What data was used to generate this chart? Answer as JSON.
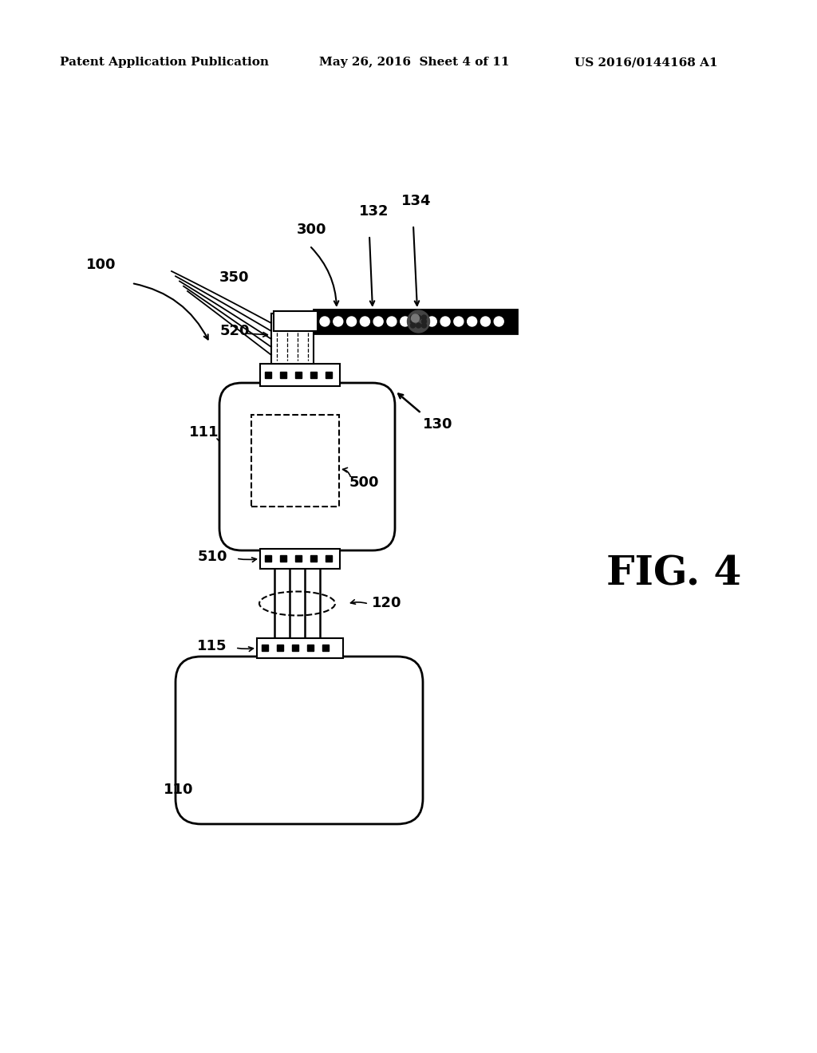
{
  "bg_color": "#ffffff",
  "header_left": "Patent Application Publication",
  "header_mid": "May 26, 2016  Sheet 4 of 11",
  "header_right": "US 2016/0144168 A1",
  "fig_label": "FIG. 4",
  "label_100": "100",
  "label_110": "110",
  "label_111": "111",
  "label_115": "115",
  "label_120": "120",
  "label_130": "130",
  "label_132": "132",
  "label_134": "134",
  "label_300": "300",
  "label_350": "350",
  "label_500": "500",
  "label_510": "510",
  "label_520": "520"
}
